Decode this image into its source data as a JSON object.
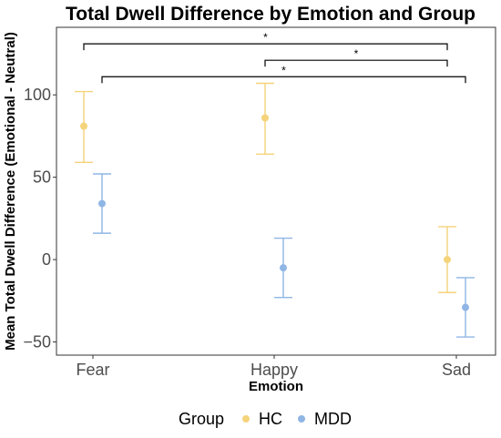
{
  "chart_data": {
    "type": "scatter",
    "title": "Total Dwell Difference by Emotion and Group",
    "xlabel": "Emotion",
    "ylabel": "Mean Total Dwell Difference (Emotional - Neutral)",
    "categories": [
      "Fear",
      "Happy",
      "Sad"
    ],
    "yticks": [
      -50,
      0,
      50,
      100
    ],
    "ylim": [
      -58,
      141
    ],
    "grid": false,
    "error_bars": true,
    "legend": {
      "title": "Group",
      "position": "bottom"
    },
    "series": [
      {
        "name": "HC",
        "color": "#F5D37A",
        "dodge": -1,
        "values": [
          81,
          86,
          0
        ],
        "lower": [
          59,
          64,
          -20
        ],
        "upper": [
          102,
          107,
          20
        ]
      },
      {
        "name": "MDD",
        "color": "#8FB6E5",
        "dodge": 1,
        "values": [
          34,
          -5,
          -29
        ],
        "lower": [
          16,
          -23,
          -47
        ],
        "upper": [
          52,
          13,
          -11
        ]
      }
    ],
    "significance": [
      {
        "from": "Fear (HC)",
        "to": "Sad (HC)",
        "label": "*",
        "y": 131
      },
      {
        "from": "Happy (HC)",
        "to": "Sad (HC)",
        "label": "*",
        "y": 121
      },
      {
        "from": "Fear (MDD)",
        "to": "Sad (MDD)",
        "label": "*",
        "y": 111
      }
    ],
    "significance_brackets": [
      {
        "from_category": 0,
        "from_series": 0,
        "to_category": 2,
        "to_series": 0
      },
      {
        "from_category": 1,
        "from_series": 0,
        "to_category": 2,
        "to_series": 0
      },
      {
        "from_category": 0,
        "from_series": 1,
        "to_category": 2,
        "to_series": 1
      }
    ]
  }
}
